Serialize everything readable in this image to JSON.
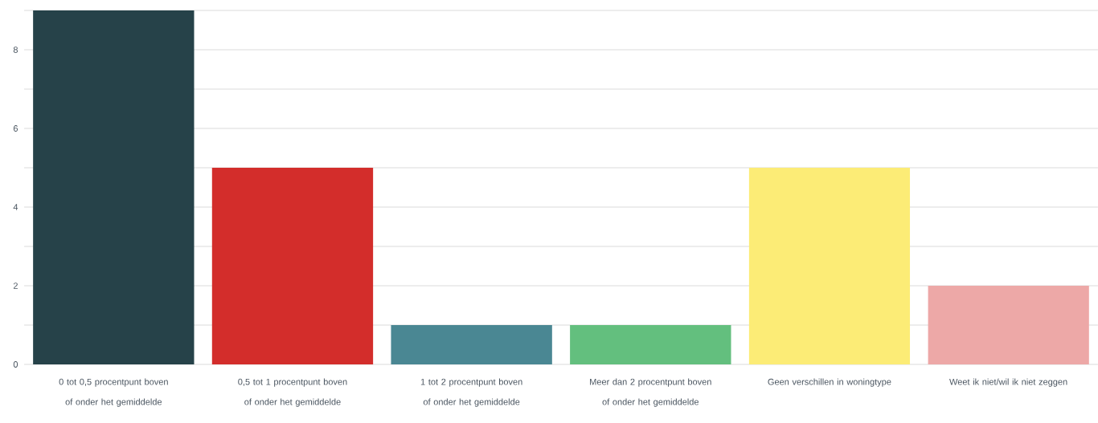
{
  "chart_data": {
    "type": "bar",
    "categories": [
      "0 tot 0,5 procentpunt boven of onder het gemiddelde",
      "0,5 tot 1 procentpunt boven of onder het gemiddelde",
      "1 tot 2 procentpunt boven of onder het gemiddelde",
      "Meer dan 2 procentpunt boven of onder het gemiddelde",
      "Geen verschillen in woningtype",
      "Weet ik niet/wil ik niet zeggen"
    ],
    "values": [
      9,
      5,
      1,
      1,
      5,
      2
    ],
    "colors": [
      "#264249",
      "#d32d2b",
      "#4a8793",
      "#63bf7e",
      "#fcec76",
      "#eda8a7"
    ],
    "ylim": [
      0,
      9
    ],
    "yticks": [
      0,
      {
        "value": 1,
        "label": null
      },
      2,
      {
        "value": 3,
        "label": null
      },
      4,
      {
        "value": 5,
        "label": null
      },
      6,
      {
        "value": 7,
        "label": null
      },
      8,
      {
        "value": 9,
        "label": null
      }
    ],
    "grid": "y"
  }
}
